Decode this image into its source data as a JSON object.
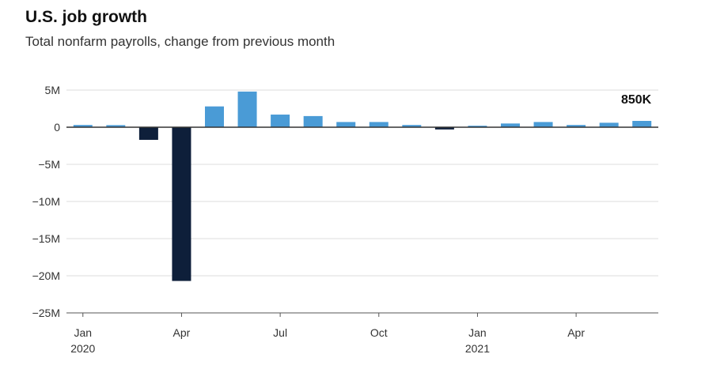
{
  "chart_data": {
    "type": "bar",
    "title": "U.S. job growth",
    "subtitle": "Total nonfarm payrolls, change from previous month",
    "xlabel": "",
    "ylabel": "",
    "ylim": [
      -25000000,
      5000000
    ],
    "y_ticks": [
      5000000,
      0,
      -5000000,
      -10000000,
      -15000000,
      -20000000,
      -25000000
    ],
    "y_tick_labels": [
      "5M",
      "0",
      "−5M",
      "−10M",
      "−15M",
      "−20M",
      "−25M"
    ],
    "categories": [
      "2020-01",
      "2020-02",
      "2020-03",
      "2020-04",
      "2020-05",
      "2020-06",
      "2020-07",
      "2020-08",
      "2020-09",
      "2020-10",
      "2020-11",
      "2020-12",
      "2021-01",
      "2021-02",
      "2021-03",
      "2021-04",
      "2021-05",
      "2021-06"
    ],
    "values": [
      300000,
      280000,
      -1700000,
      -20700000,
      2800000,
      4800000,
      1700000,
      1500000,
      700000,
      700000,
      300000,
      -300000,
      200000,
      500000,
      700000,
      300000,
      600000,
      850000
    ],
    "x_tick_labels": [
      {
        "category": "2020-01",
        "label": "Jan",
        "sublabel": "2020"
      },
      {
        "category": "2020-04",
        "label": "Apr",
        "sublabel": ""
      },
      {
        "category": "2020-07",
        "label": "Jul",
        "sublabel": ""
      },
      {
        "category": "2020-10",
        "label": "Oct",
        "sublabel": ""
      },
      {
        "category": "2021-01",
        "label": "Jan",
        "sublabel": "2021"
      },
      {
        "category": "2021-04",
        "label": "Apr",
        "sublabel": ""
      }
    ],
    "annotations": [
      {
        "category": "2021-06",
        "text": "850K"
      }
    ],
    "colors": {
      "positive": "#4a9bd6",
      "negative": "#0e1f3a",
      "grid": "#dcdcdc",
      "zero_line": "#333333",
      "axis": "#555555"
    },
    "grid": true,
    "legend": "none"
  }
}
